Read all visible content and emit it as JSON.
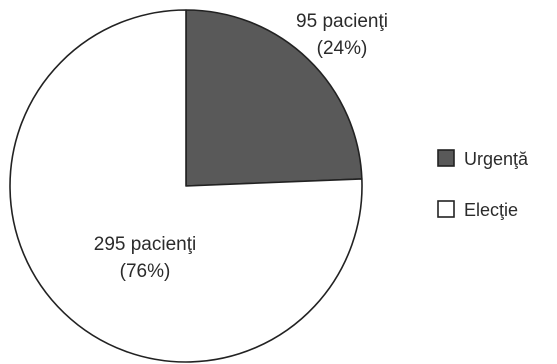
{
  "chart_data": {
    "type": "pie",
    "title": "",
    "slices": [
      {
        "name": "Urgenţă",
        "value": 95,
        "label_line1": "95 pacienţi",
        "label_line2": "(24%)",
        "color": "#595959"
      },
      {
        "name": "Elecţie",
        "value": 295,
        "label_line1": "295 pacienţi",
        "label_line2": "(76%)",
        "color": "#ffffff"
      }
    ],
    "start_angle": "12 o'clock",
    "direction": "clockwise",
    "legend_position": "right"
  }
}
